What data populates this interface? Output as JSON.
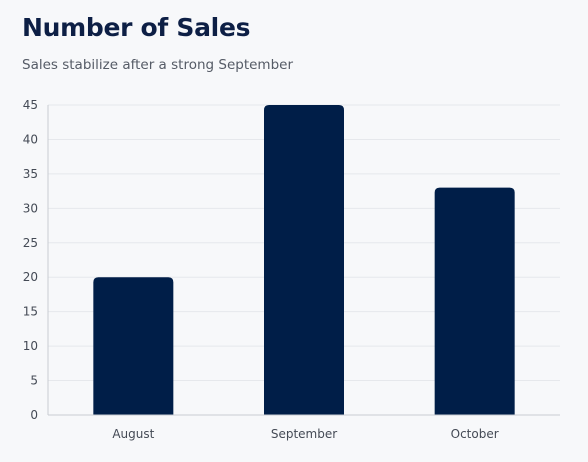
{
  "chart_data": {
    "type": "bar",
    "title": "Number of Sales",
    "subtitle": "Sales stabilize after a strong September",
    "categories": [
      "August",
      "September",
      "October"
    ],
    "values": [
      20,
      45,
      33
    ],
    "xlabel": "",
    "ylabel": "",
    "ylim": [
      0,
      45
    ],
    "yticks": [
      0,
      5,
      10,
      15,
      20,
      25,
      30,
      35,
      40,
      45
    ],
    "grid": true,
    "legend": "none",
    "bar_color": "#001e48",
    "grid_color": "#e6e8ec",
    "axis_color": "#c8ccd2"
  }
}
